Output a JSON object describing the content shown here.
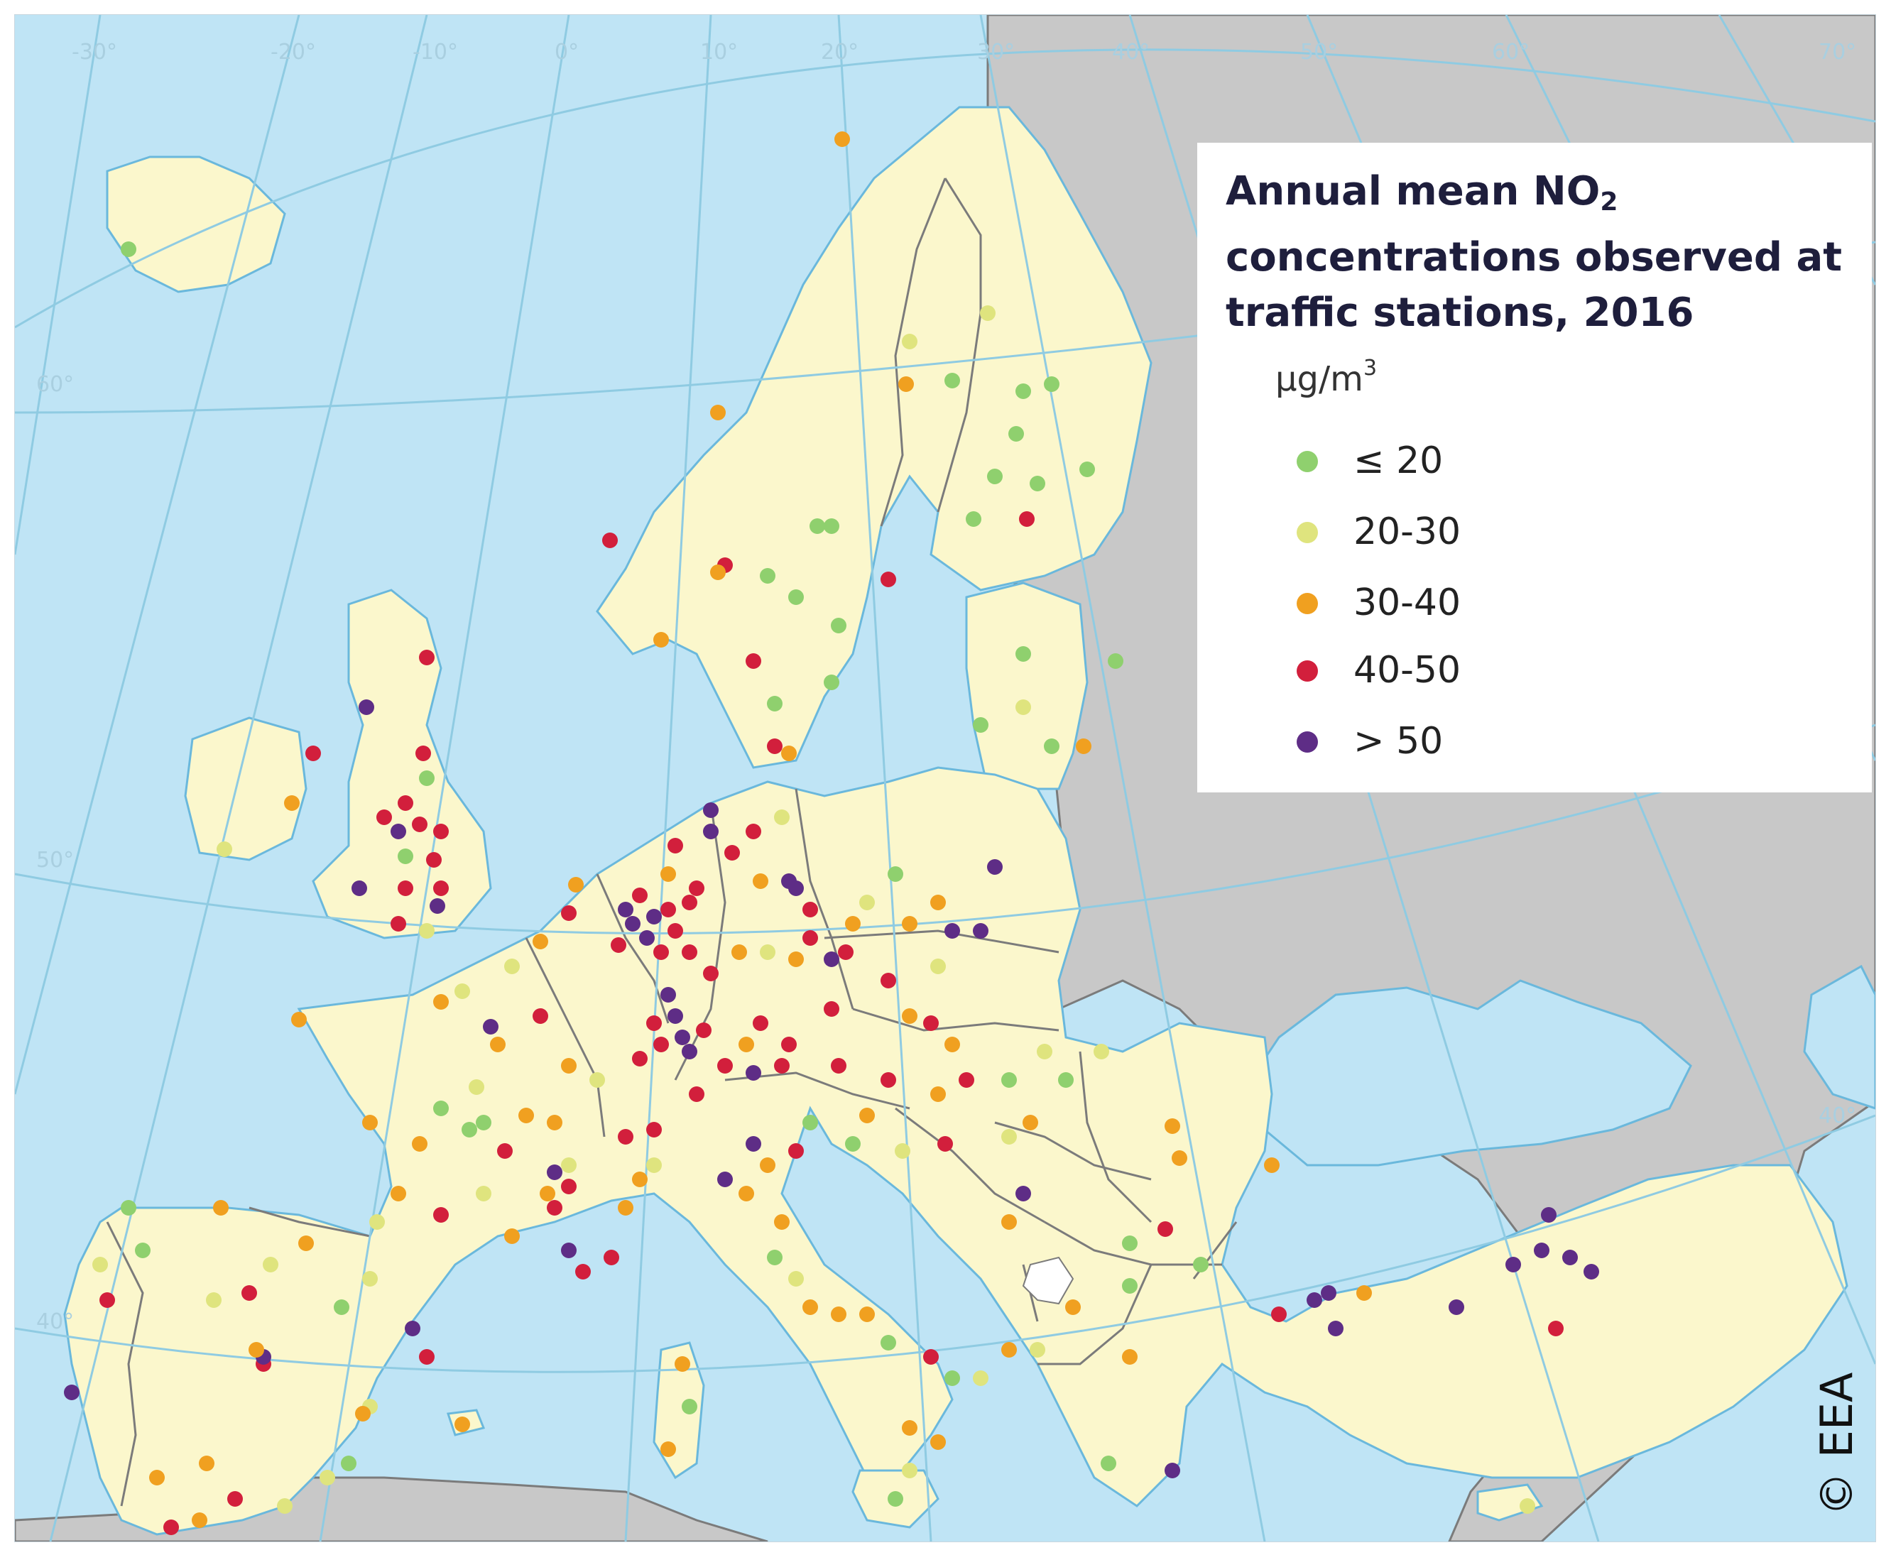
{
  "legend": {
    "title_part1": "Annual mean NO",
    "title_sub": "2",
    "title_part2": "concentrations observed at traffic stations, 2016",
    "unit_base": "µg/m",
    "unit_sup": "3",
    "items": [
      {
        "label": "≤ 20",
        "color": "#8fd06e"
      },
      {
        "label": "20-30",
        "color": "#dfe47e"
      },
      {
        "label": "30-40",
        "color": "#f0a020"
      },
      {
        "label": "40-50",
        "color": "#d21f3c"
      },
      {
        "label": "> 50",
        "color": "#5e2d86"
      }
    ]
  },
  "credit": "© EEA",
  "graticule_labels": {
    "longitude": [
      "-30°",
      "-20°",
      "-10°",
      "0°",
      "10°",
      "20°",
      "30°",
      "40°",
      "50°",
      "60°",
      "70°"
    ],
    "latitude": [
      "60°",
      "50°",
      "40°",
      "40°"
    ]
  },
  "colors": {
    "sea": "#bfe4f5",
    "land_eea": "#fbf7cc",
    "land_other": "#c8c8c8",
    "coast": "#6ab8dc",
    "border": "#7b7b7b",
    "graticule": "#8fcbe2"
  }
}
